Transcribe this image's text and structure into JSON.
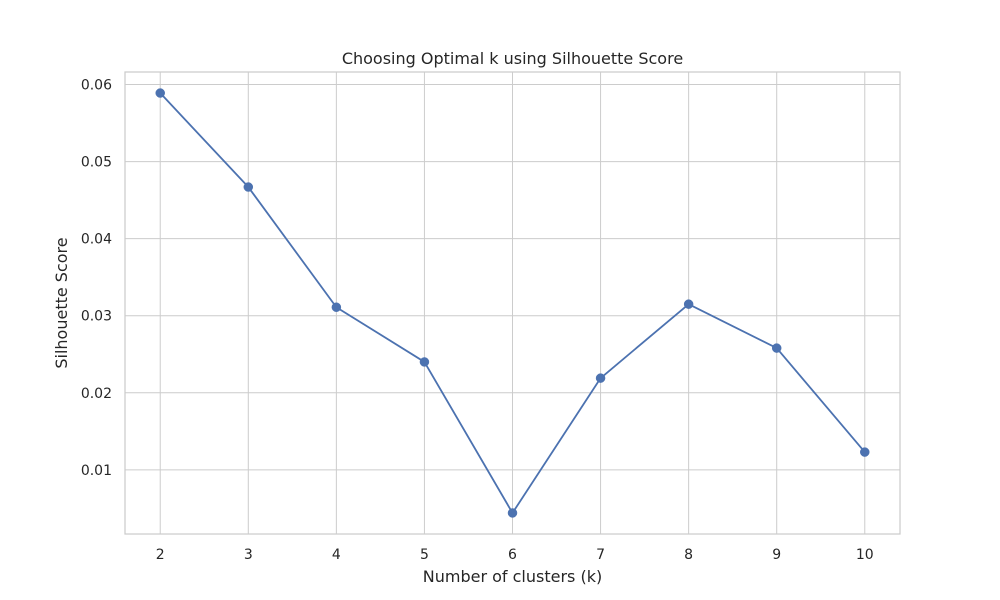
{
  "chart_data": {
    "type": "line",
    "title": "Choosing Optimal k using Silhouette Score",
    "xlabel": "Number of clusters (k)",
    "ylabel": "Silhouette Score",
    "x": [
      2,
      3,
      4,
      5,
      6,
      7,
      8,
      9,
      10
    ],
    "series": [
      {
        "values": [
          0.0589,
          0.0467,
          0.0311,
          0.024,
          0.0044,
          0.0219,
          0.0315,
          0.0258,
          0.0123
        ],
        "color": "#4c72b0",
        "marker": "circle"
      }
    ],
    "xticks": [
      "2",
      "3",
      "4",
      "5",
      "6",
      "7",
      "8",
      "9",
      "10"
    ],
    "yticks": [
      "0.01",
      "0.02",
      "0.03",
      "0.04",
      "0.05",
      "0.06"
    ],
    "xlim": [
      1.6,
      10.4
    ],
    "ylim": [
      0.00167,
      0.06163
    ],
    "grid": true,
    "style": "seaborn-whitegrid"
  }
}
